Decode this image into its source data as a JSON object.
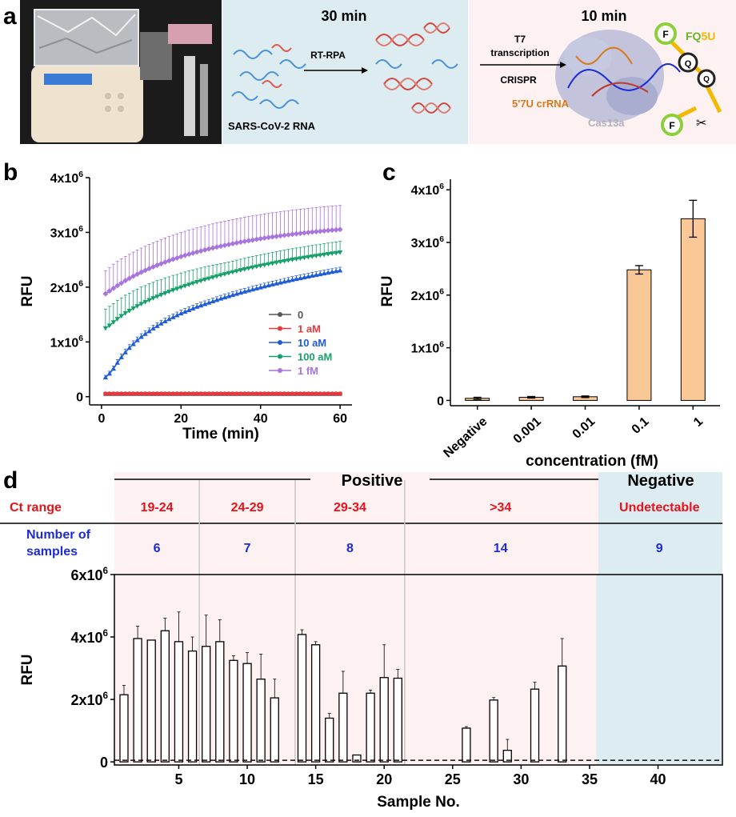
{
  "panels": {
    "a": {
      "letter": "a",
      "step1_time": "30 min",
      "step1_method": "RT-RPA",
      "step1_input": "SARS-CoV-2 RNA",
      "step2_time": "10 min",
      "step2_line1": "T7",
      "step2_line2": "transcription",
      "step2_line3": "CRISPR",
      "crrna_label": "5'7U crRNA",
      "enzyme_label": "Cas13a",
      "reporter_label_fq": "FQ",
      "reporter_label_5u": "5U",
      "fluor_letter": "F",
      "quench_letter": "Q"
    },
    "b": {
      "letter": "b"
    },
    "c": {
      "letter": "c"
    },
    "d": {
      "letter": "d",
      "positive_label": "Positive",
      "negative_label": "Negative",
      "ct_range_label": "Ct range",
      "number_label_line1": "Number of",
      "number_label_line2": "samples",
      "groups": [
        {
          "ct": "19-24",
          "n": "6"
        },
        {
          "ct": "24-29",
          "n": "7"
        },
        {
          "ct": "29-34",
          "n": "8"
        },
        {
          "ct": ">34",
          "n": "14"
        },
        {
          "ct": "Undetectable",
          "n": "9"
        }
      ]
    }
  },
  "colors": {
    "red_label": "#e8121a",
    "blue_label": "#1c2bd6",
    "pink_bg": "#fdf1f2",
    "blue_bg": "#dcecf1",
    "photo_bg": "#1b1b1b",
    "bar_orange": "#f9c896",
    "s0": "#555555",
    "s1": "#e8383d",
    "s2": "#1f5cd6",
    "s3": "#18a06a",
    "s4": "#a874dd"
  },
  "chart_data": [
    {
      "type": "line",
      "panel": "b",
      "xlabel": "Time (min)",
      "ylabel": "RFU",
      "xlim": [
        -3,
        63
      ],
      "ylim": [
        -150000,
        4000000
      ],
      "xticks": [
        0,
        20,
        40,
        60
      ],
      "yticks": [
        0,
        1000000,
        2000000,
        3000000,
        4000000
      ],
      "yticklabels": [
        "0",
        "1x10^6",
        "2x10^6",
        "3x10^6",
        "4x10^6"
      ],
      "x": [
        1,
        2,
        3,
        4,
        5,
        6,
        7,
        8,
        9,
        10,
        11,
        12,
        13,
        14,
        15,
        16,
        17,
        18,
        19,
        20,
        21,
        22,
        23,
        24,
        25,
        26,
        27,
        28,
        29,
        30,
        31,
        32,
        33,
        34,
        35,
        36,
        37,
        38,
        39,
        40,
        41,
        42,
        43,
        44,
        45,
        46,
        47,
        48,
        49,
        50,
        51,
        52,
        53,
        54,
        55,
        56,
        57,
        58,
        59,
        60
      ],
      "legend_position": "right",
      "series": [
        {
          "name": "0",
          "marker": "square",
          "values": [
            50000,
            50000,
            50000,
            50000,
            50000,
            50000,
            50000,
            50000,
            50000,
            50000,
            50000,
            50000,
            50000,
            50000,
            50000,
            50000,
            50000,
            50000,
            50000,
            50000,
            50000,
            50000,
            50000,
            50000,
            50000,
            50000,
            50000,
            50000,
            50000,
            50000,
            50000,
            50000,
            50000,
            50000,
            50000,
            50000,
            50000,
            50000,
            50000,
            50000,
            50000,
            50000,
            50000,
            50000,
            50000,
            50000,
            50000,
            50000,
            50000,
            50000,
            50000,
            50000,
            50000,
            50000,
            50000,
            50000,
            50000,
            50000,
            50000,
            50000
          ],
          "errors": []
        },
        {
          "name": "1 aM",
          "marker": "circle",
          "values": [
            55000,
            55000,
            55000,
            55000,
            55000,
            55000,
            55000,
            55000,
            55000,
            55000,
            55000,
            55000,
            55000,
            55000,
            55000,
            55000,
            55000,
            55000,
            55000,
            55000,
            55000,
            55000,
            55000,
            55000,
            55000,
            55000,
            55000,
            55000,
            55000,
            55000,
            55000,
            55000,
            55000,
            55000,
            55000,
            55000,
            55000,
            55000,
            55000,
            55000,
            55000,
            55000,
            55000,
            55000,
            55000,
            55000,
            55000,
            55000,
            55000,
            55000,
            55000,
            55000,
            55000,
            55000,
            55000,
            55000,
            55000,
            55000,
            55000,
            55000
          ],
          "errors": []
        },
        {
          "name": "10 aM",
          "marker": "triangle-up",
          "values": [
            350000,
            420000,
            510000,
            620000,
            720000,
            810000,
            890000,
            960000,
            1030000,
            1090000,
            1145000,
            1195000,
            1245000,
            1290000,
            1335000,
            1375000,
            1415000,
            1450000,
            1485000,
            1520000,
            1550000,
            1580000,
            1610000,
            1640000,
            1665000,
            1690000,
            1715000,
            1740000,
            1765000,
            1790000,
            1812000,
            1834000,
            1856000,
            1877000,
            1898000,
            1918000,
            1938000,
            1957000,
            1976000,
            1995000,
            2013000,
            2031000,
            2049000,
            2066000,
            2083000,
            2100000,
            2116000,
            2132000,
            2148000,
            2163000,
            2178000,
            2193000,
            2208000,
            2222000,
            2236000,
            2250000,
            2264000,
            2277000,
            2290000,
            2303000
          ],
          "errors": [
            40000,
            45000,
            50000,
            55000,
            60000,
            60000,
            60000,
            60000,
            60000,
            60000,
            60000,
            60000,
            60000,
            60000,
            60000,
            60000,
            60000,
            60000,
            60000,
            60000,
            60000,
            60000,
            60000,
            60000,
            60000,
            60000,
            60000,
            60000,
            60000,
            60000,
            60000,
            60000,
            60000,
            60000,
            60000,
            60000,
            60000,
            60000,
            60000,
            60000,
            60000,
            60000,
            60000,
            60000,
            60000,
            60000,
            60000,
            60000,
            60000,
            60000,
            60000,
            60000,
            60000,
            60000,
            60000,
            60000,
            60000,
            60000,
            60000,
            60000
          ]
        },
        {
          "name": "100 aM",
          "marker": "triangle-down",
          "values": [
            1250000,
            1300000,
            1360000,
            1420000,
            1475000,
            1525000,
            1570000,
            1615000,
            1655000,
            1695000,
            1730000,
            1765000,
            1800000,
            1830000,
            1860000,
            1890000,
            1918000,
            1946000,
            1972000,
            1998000,
            2023000,
            2047000,
            2071000,
            2094000,
            2116000,
            2138000,
            2159000,
            2180000,
            2200000,
            2220000,
            2239000,
            2258000,
            2276000,
            2294000,
            2311000,
            2328000,
            2345000,
            2361000,
            2377000,
            2392000,
            2407000,
            2422000,
            2436000,
            2450000,
            2464000,
            2477000,
            2490000,
            2503000,
            2515000,
            2527000,
            2539000,
            2551000,
            2562000,
            2573000,
            2584000,
            2595000,
            2606000,
            2616000,
            2626000,
            2636000
          ],
          "errors": [
            350000,
            350000,
            340000,
            340000,
            330000,
            330000,
            320000,
            320000,
            310000,
            310000,
            300000,
            300000,
            290000,
            290000,
            280000,
            280000,
            270000,
            270000,
            260000,
            260000,
            255000,
            250000,
            245000,
            240000,
            235000,
            230000,
            225000,
            220000,
            215000,
            210000,
            205000,
            200000,
            200000,
            200000,
            200000,
            200000,
            200000,
            200000,
            200000,
            200000,
            200000,
            200000,
            200000,
            200000,
            200000,
            200000,
            200000,
            200000,
            200000,
            200000,
            200000,
            200000,
            200000,
            200000,
            200000,
            200000,
            200000,
            200000,
            200000,
            200000
          ]
        },
        {
          "name": "1 fM",
          "marker": "diamond",
          "values": [
            1880000,
            1930000,
            1980000,
            2030000,
            2075000,
            2120000,
            2160000,
            2200000,
            2237000,
            2273000,
            2307000,
            2340000,
            2371000,
            2401000,
            2430000,
            2458000,
            2484000,
            2510000,
            2534000,
            2558000,
            2580000,
            2602000,
            2623000,
            2643000,
            2662000,
            2681000,
            2699000,
            2716000,
            2733000,
            2749000,
            2765000,
            2780000,
            2795000,
            2809000,
            2823000,
            2836000,
            2849000,
            2861000,
            2873000,
            2885000,
            2896000,
            2907000,
            2918000,
            2928000,
            2938000,
            2948000,
            2957000,
            2966000,
            2975000,
            2983000,
            2991000,
            2999000,
            3007000,
            3014000,
            3021000,
            3028000,
            3035000,
            3041000,
            3047000,
            3053000
          ],
          "errors": [
            420000,
            430000,
            440000,
            440000,
            440000,
            440000,
            440000,
            440000,
            440000,
            440000,
            440000,
            440000,
            440000,
            440000,
            440000,
            440000,
            440000,
            440000,
            440000,
            440000,
            440000,
            440000,
            440000,
            440000,
            440000,
            440000,
            440000,
            440000,
            440000,
            440000,
            440000,
            440000,
            440000,
            440000,
            440000,
            440000,
            440000,
            440000,
            440000,
            440000,
            440000,
            440000,
            440000,
            440000,
            440000,
            440000,
            440000,
            440000,
            440000,
            440000,
            440000,
            440000,
            440000,
            440000,
            440000,
            440000,
            440000,
            440000,
            440000,
            440000
          ]
        }
      ]
    },
    {
      "type": "bar",
      "panel": "c",
      "xlabel": "concentration (fM)",
      "ylabel": "RFU",
      "categories": [
        "Negative",
        "0.001",
        "0.01",
        "0.1",
        "1"
      ],
      "values": [
        40000,
        60000,
        70000,
        2480000,
        3450000
      ],
      "errors": [
        20000,
        15000,
        15000,
        80000,
        350000
      ],
      "ylim": [
        -100000,
        4200000
      ],
      "yticks": [
        0,
        1000000,
        2000000,
        3000000,
        4000000
      ],
      "yticklabels": [
        "0",
        "1x10^6",
        "2x10^6",
        "3x10^6",
        "4x10^6"
      ]
    },
    {
      "type": "bar",
      "panel": "d",
      "xlabel": "Sample No.",
      "ylabel": "RFU",
      "xlim": [
        0.3,
        44.7
      ],
      "ylim": [
        -100000,
        6000000
      ],
      "xticks": [
        5,
        10,
        15,
        20,
        25,
        30,
        35,
        40
      ],
      "yticks": [
        0,
        2000000,
        4000000,
        6000000
      ],
      "yticklabels": [
        "0",
        "2x10^6",
        "4x10^6",
        "6x10^6"
      ],
      "threshold": 50000,
      "x": [
        1,
        2,
        3,
        4,
        5,
        6,
        7,
        8,
        9,
        10,
        11,
        12,
        13,
        14,
        15,
        16,
        17,
        18,
        19,
        20,
        21,
        22,
        23,
        24,
        25,
        26,
        27,
        28,
        29,
        30,
        31,
        32,
        33,
        34,
        35,
        36,
        37,
        38,
        39,
        40,
        41,
        42,
        43,
        44
      ],
      "values": [
        2150000,
        3950000,
        3900000,
        4200000,
        3850000,
        3550000,
        3700000,
        3850000,
        3250000,
        3150000,
        2650000,
        2050000,
        0,
        4080000,
        3750000,
        1400000,
        2200000,
        220000,
        2200000,
        2700000,
        2680000,
        0,
        0,
        0,
        0,
        1080000,
        0,
        1980000,
        370000,
        0,
        2330000,
        0,
        3070000,
        0,
        0,
        0,
        0,
        0,
        0,
        0,
        0,
        0,
        0,
        0
      ],
      "errors": [
        300000,
        400000,
        0,
        400000,
        950000,
        450000,
        1000000,
        700000,
        150000,
        350000,
        800000,
        600000,
        0,
        150000,
        100000,
        150000,
        700000,
        0,
        100000,
        1050000,
        280000,
        0,
        0,
        0,
        0,
        50000,
        0,
        80000,
        350000,
        0,
        220000,
        0,
        880000,
        0,
        0,
        0,
        0,
        0,
        0,
        0,
        0,
        0,
        0,
        0
      ]
    }
  ]
}
